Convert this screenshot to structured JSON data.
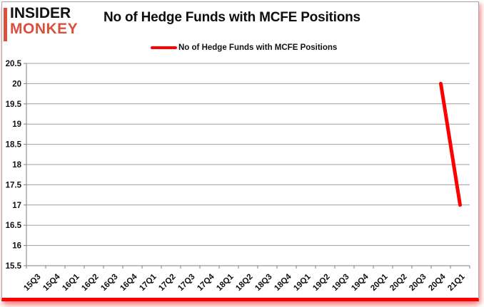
{
  "branding": {
    "logo_line1": "INSIDER",
    "logo_line2": "MONKEY",
    "logo_text_color": "#111111",
    "logo_accent_color": "#d8513c"
  },
  "header": {
    "title": "No of Hedge Funds with MCFE Positions"
  },
  "legend": {
    "label": "No of Hedge Funds with MCFE Positions",
    "line_color": "#fe0000"
  },
  "chart_data": {
    "type": "line",
    "title": "No of Hedge Funds with MCFE Positions",
    "categories": [
      "15Q3",
      "15Q4",
      "16Q1",
      "16Q2",
      "16Q3",
      "16Q4",
      "17Q1",
      "17Q2",
      "17Q3",
      "17Q4",
      "18Q1",
      "18Q2",
      "18Q3",
      "18Q4",
      "19Q1",
      "19Q2",
      "19Q3",
      "19Q4",
      "20Q1",
      "20Q2",
      "20Q3",
      "20Q4",
      "21Q1"
    ],
    "series": [
      {
        "name": "No of Hedge Funds with MCFE Positions",
        "color": "#fe0000",
        "values": [
          null,
          null,
          null,
          null,
          null,
          null,
          null,
          null,
          null,
          null,
          null,
          null,
          null,
          null,
          null,
          null,
          null,
          null,
          null,
          null,
          null,
          20,
          17
        ]
      }
    ],
    "ylim": [
      15.5,
      20.5
    ],
    "ytick_step": 0.5,
    "xlabel": "",
    "ylabel": "",
    "grid": true,
    "legend_position": "top",
    "grid_color": "#9f9f9f",
    "axis_color": "#7f7f7f",
    "tick_label_color": "#111111"
  }
}
